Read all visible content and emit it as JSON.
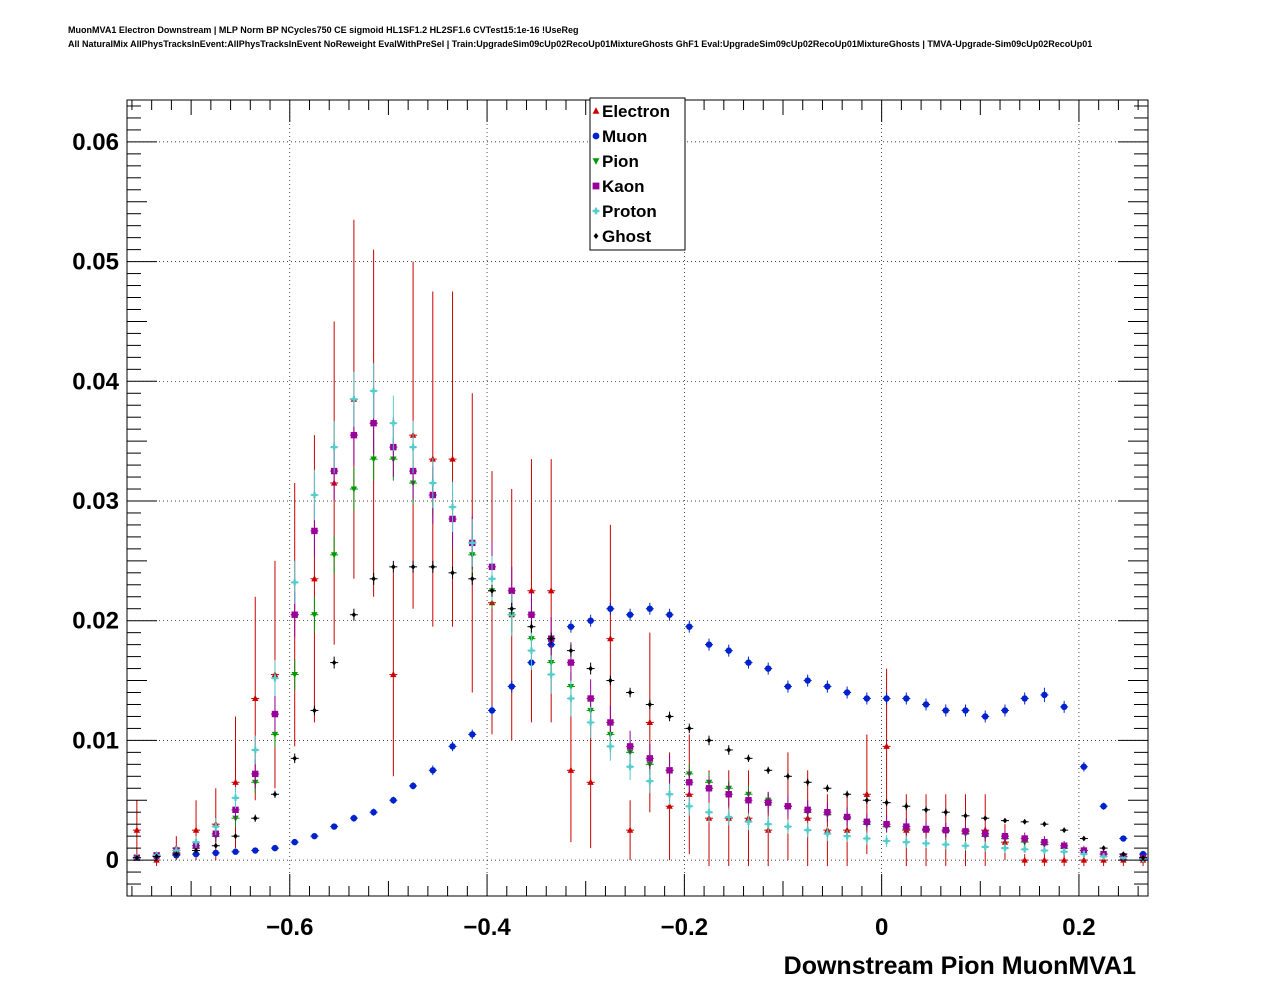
{
  "titles": {
    "line1": "MuonMVA1 Electron Downstream | MLP Norm BP NCycles750 CE sigmoid HL1SF1.2 HL2SF1.6 CVTest15:1e-16 !UseReg",
    "line2": "All NaturalMix AllPhysTracksInEvent:AllPhysTracksInEvent NoReweight EvalWithPreSel | Train:UpgradeSim09cUp02RecoUp01MixtureGhosts GhF1 Eval:UpgradeSim09cUp02RecoUp01MixtureGhosts | TMVA-Upgrade-Sim09cUp02RecoUp01"
  },
  "chart_data": {
    "type": "scatter",
    "xlabel": "Downstream Pion MuonMVA1",
    "ylabel": "",
    "xlim": [
      -0.765,
      0.27
    ],
    "ylim": [
      -0.003,
      0.0635
    ],
    "grid": true,
    "legend_position": "top-center",
    "x_ticks": [
      -0.6,
      -0.4,
      -0.2,
      0,
      0.2
    ],
    "x_tick_labels": [
      "−0.6",
      "−0.4",
      "−0.2",
      "0",
      "0.2"
    ],
    "y_ticks": [
      0,
      0.01,
      0.02,
      0.03,
      0.04,
      0.05,
      0.06
    ],
    "y_tick_labels": [
      "0",
      "0.01",
      "0.02",
      "0.03",
      "0.04",
      "0.05",
      "0.06"
    ],
    "x": [
      -0.755,
      -0.735,
      -0.715,
      -0.695,
      -0.675,
      -0.655,
      -0.635,
      -0.615,
      -0.595,
      -0.575,
      -0.555,
      -0.535,
      -0.515,
      -0.495,
      -0.475,
      -0.455,
      -0.435,
      -0.415,
      -0.395,
      -0.375,
      -0.355,
      -0.335,
      -0.315,
      -0.295,
      -0.275,
      -0.255,
      -0.235,
      -0.215,
      -0.195,
      -0.175,
      -0.155,
      -0.135,
      -0.115,
      -0.095,
      -0.075,
      -0.055,
      -0.035,
      -0.015,
      0.005,
      0.025,
      0.045,
      0.065,
      0.085,
      0.105,
      0.125,
      0.145,
      0.165,
      0.185,
      0.205,
      0.225,
      0.245,
      0.265
    ],
    "series": [
      {
        "name": "Electron",
        "color": "#cc0000",
        "marker": "triangle-up",
        "values": [
          0.0025,
          0,
          0.001,
          0.0025,
          0.003,
          0.0065,
          0.0135,
          0.0155,
          0.0205,
          0.0235,
          0.0315,
          0.0385,
          0.0365,
          0.0155,
          0.0355,
          0.0335,
          0.0335,
          0.0265,
          0.0215,
          0.0205,
          0.0225,
          0.0225,
          0.0075,
          0.0065,
          0.0185,
          0.0025,
          0.0115,
          0.0045,
          0.0055,
          0.0035,
          0.0035,
          0.0035,
          0.0025,
          0.0045,
          0.0035,
          0.0025,
          0.0025,
          0.0055,
          0.0095,
          0.0025,
          0.0025,
          0.0025,
          0.0025,
          0.0025,
          0.0015,
          0,
          0,
          0,
          0,
          0,
          0,
          0
        ],
        "errors": [
          0.0025,
          0.0005,
          0.001,
          0.0025,
          0.003,
          0.0055,
          0.0085,
          0.0095,
          0.011,
          0.012,
          0.0135,
          0.015,
          0.0145,
          0.0085,
          0.0145,
          0.014,
          0.014,
          0.0125,
          0.011,
          0.0105,
          0.011,
          0.011,
          0.006,
          0.0055,
          0.0095,
          0.0025,
          0.0075,
          0.0045,
          0.005,
          0.004,
          0.004,
          0.004,
          0.003,
          0.0045,
          0.004,
          0.003,
          0.003,
          0.005,
          0.0065,
          0.003,
          0.003,
          0.003,
          0.003,
          0.003,
          0.0015,
          0.0005,
          0.0005,
          0.0005,
          0.0005,
          0.0005,
          0.0005,
          0.0005
        ]
      },
      {
        "name": "Muon",
        "color": "#0022cc",
        "marker": "circle",
        "values": [
          0.0002,
          0.0003,
          0.0004,
          0.0005,
          0.0006,
          0.0007,
          0.0008,
          0.001,
          0.0015,
          0.002,
          0.0028,
          0.0035,
          0.004,
          0.005,
          0.0062,
          0.0075,
          0.0095,
          0.0105,
          0.0125,
          0.0145,
          0.0165,
          0.018,
          0.0195,
          0.02,
          0.021,
          0.0205,
          0.021,
          0.0205,
          0.0195,
          0.018,
          0.0175,
          0.0165,
          0.016,
          0.0145,
          0.015,
          0.0145,
          0.014,
          0.0135,
          0.0135,
          0.0135,
          0.013,
          0.0125,
          0.0125,
          0.012,
          0.0125,
          0.0135,
          0.0138,
          0.0128,
          0.0078,
          0.0045,
          0.0018,
          0.0005
        ],
        "errors": [
          0.0001,
          0.0001,
          0.0001,
          0.0001,
          0.0001,
          0.0001,
          0.0001,
          0.0001,
          0.0002,
          0.0002,
          0.0002,
          0.0003,
          0.0003,
          0.0003,
          0.0003,
          0.0004,
          0.0004,
          0.0004,
          0.0004,
          0.0005,
          0.0005,
          0.0005,
          0.0005,
          0.0005,
          0.0005,
          0.0005,
          0.0005,
          0.0005,
          0.0005,
          0.0005,
          0.0005,
          0.0005,
          0.0005,
          0.0005,
          0.0005,
          0.0005,
          0.0005,
          0.0005,
          0.0005,
          0.0005,
          0.0005,
          0.0005,
          0.0005,
          0.0005,
          0.0005,
          0.0005,
          0.0006,
          0.0005,
          0.0004,
          0.0003,
          0.0002,
          0.0001
        ]
      },
      {
        "name": "Pion",
        "color": "#009900",
        "marker": "triangle-down",
        "values": [
          0.0002,
          0.0004,
          0.0006,
          0.001,
          0.002,
          0.0035,
          0.0065,
          0.0105,
          0.0155,
          0.0205,
          0.0255,
          0.031,
          0.0335,
          0.0335,
          0.0315,
          0.0305,
          0.0285,
          0.0255,
          0.0225,
          0.0205,
          0.0185,
          0.0165,
          0.0145,
          0.0125,
          0.0105,
          0.009,
          0.008,
          0.0075,
          0.0072,
          0.0065,
          0.006,
          0.0055,
          0.005,
          0.0045,
          0.004,
          0.0038,
          0.0035,
          0.003,
          0.0028,
          0.0026,
          0.0025,
          0.0024,
          0.0022,
          0.002,
          0.0018,
          0.0015,
          0.0013,
          0.001,
          0.0008,
          0.0005,
          0.0003,
          0.0002
        ],
        "errors": [
          0.0002,
          0.0003,
          0.0003,
          0.0004,
          0.0005,
          0.0007,
          0.0009,
          0.0011,
          0.0013,
          0.0015,
          0.0016,
          0.0018,
          0.0018,
          0.0018,
          0.0018,
          0.0017,
          0.0017,
          0.0016,
          0.0015,
          0.0014,
          0.0013,
          0.0013,
          0.0012,
          0.0011,
          0.001,
          0.0009,
          0.0009,
          0.0008,
          0.0008,
          0.0008,
          0.0007,
          0.0007,
          0.0007,
          0.0006,
          0.0006,
          0.0006,
          0.0006,
          0.0005,
          0.0005,
          0.0005,
          0.0005,
          0.0005,
          0.0005,
          0.0004,
          0.0004,
          0.0004,
          0.0003,
          0.0003,
          0.0003,
          0.0002,
          0.0002,
          0.0001
        ]
      },
      {
        "name": "Kaon",
        "color": "#990099",
        "marker": "square",
        "values": [
          0.0002,
          0.0004,
          0.0008,
          0.0012,
          0.0022,
          0.0042,
          0.0072,
          0.0122,
          0.0205,
          0.0275,
          0.0325,
          0.0355,
          0.0365,
          0.0345,
          0.0325,
          0.0305,
          0.0285,
          0.0265,
          0.0245,
          0.0225,
          0.0205,
          0.0185,
          0.0165,
          0.0135,
          0.0115,
          0.0095,
          0.0085,
          0.0075,
          0.0065,
          0.006,
          0.0055,
          0.005,
          0.0048,
          0.0045,
          0.0042,
          0.004,
          0.0036,
          0.0032,
          0.003,
          0.0028,
          0.0026,
          0.0025,
          0.0024,
          0.0022,
          0.002,
          0.0018,
          0.0015,
          0.0012,
          0.0008,
          0.0005,
          0.0003,
          0.0002
        ],
        "errors": [
          0.0002,
          0.0003,
          0.0004,
          0.0005,
          0.0007,
          0.0009,
          0.0012,
          0.0015,
          0.0019,
          0.0022,
          0.0024,
          0.0025,
          0.0026,
          0.0025,
          0.0024,
          0.0024,
          0.0023,
          0.0022,
          0.0021,
          0.002,
          0.0019,
          0.0018,
          0.0017,
          0.0016,
          0.0014,
          0.0013,
          0.0012,
          0.0012,
          0.0011,
          0.001,
          0.001,
          0.0009,
          0.0009,
          0.0009,
          0.0008,
          0.0008,
          0.0008,
          0.0007,
          0.0007,
          0.0007,
          0.0006,
          0.0006,
          0.0006,
          0.0006,
          0.0005,
          0.0005,
          0.0005,
          0.0004,
          0.0004,
          0.0003,
          0.0002,
          0.0002
        ]
      },
      {
        "name": "Proton",
        "color": "#55cccc",
        "marker": "cross",
        "values": [
          0.0002,
          0.0004,
          0.0008,
          0.0015,
          0.0028,
          0.0052,
          0.0092,
          0.0152,
          0.0232,
          0.0305,
          0.0345,
          0.0385,
          0.0392,
          0.0365,
          0.0345,
          0.0315,
          0.0295,
          0.0265,
          0.0235,
          0.0205,
          0.0175,
          0.0155,
          0.0135,
          0.0115,
          0.0095,
          0.0078,
          0.0066,
          0.0055,
          0.0045,
          0.004,
          0.0036,
          0.0032,
          0.003,
          0.0028,
          0.0025,
          0.0022,
          0.002,
          0.0018,
          0.0016,
          0.0015,
          0.0014,
          0.0013,
          0.0012,
          0.0011,
          0.001,
          0.0009,
          0.0008,
          0.0007,
          0.0005,
          0.0003,
          0.0002,
          0.0001
        ],
        "errors": [
          0.0002,
          0.0003,
          0.0004,
          0.0005,
          0.0007,
          0.0009,
          0.0012,
          0.0015,
          0.0018,
          0.0021,
          0.0022,
          0.0023,
          0.0023,
          0.0023,
          0.0022,
          0.0021,
          0.0021,
          0.002,
          0.0019,
          0.0018,
          0.0016,
          0.0016,
          0.0015,
          0.0013,
          0.0012,
          0.0011,
          0.001,
          0.0009,
          0.0008,
          0.0008,
          0.0007,
          0.0007,
          0.0007,
          0.0006,
          0.0006,
          0.0006,
          0.0005,
          0.0005,
          0.0005,
          0.0005,
          0.0004,
          0.0004,
          0.0004,
          0.0004,
          0.0004,
          0.0003,
          0.0003,
          0.0003,
          0.0003,
          0.0002,
          0.0002,
          0.0001
        ]
      },
      {
        "name": "Ghost",
        "color": "#000000",
        "marker": "diamond",
        "values": [
          0.0002,
          0.0003,
          0.0005,
          0.0008,
          0.0012,
          0.002,
          0.0035,
          0.0055,
          0.0085,
          0.0125,
          0.0165,
          0.0205,
          0.0235,
          0.0245,
          0.0245,
          0.0245,
          0.024,
          0.0235,
          0.0225,
          0.021,
          0.0195,
          0.0185,
          0.0175,
          0.016,
          0.015,
          0.014,
          0.013,
          0.012,
          0.011,
          0.01,
          0.0092,
          0.0085,
          0.0075,
          0.007,
          0.0065,
          0.006,
          0.0055,
          0.005,
          0.0048,
          0.0045,
          0.0042,
          0.004,
          0.0037,
          0.0035,
          0.0033,
          0.0032,
          0.003,
          0.0025,
          0.0018,
          0.001,
          0.0005,
          0.0002
        ],
        "errors": [
          0.0001,
          0.0001,
          0.0001,
          0.0001,
          0.0002,
          0.0002,
          0.0003,
          0.0003,
          0.0004,
          0.0004,
          0.0005,
          0.0005,
          0.0005,
          0.0005,
          0.0005,
          0.0005,
          0.0005,
          0.0005,
          0.0005,
          0.0005,
          0.0005,
          0.0005,
          0.0005,
          0.0005,
          0.0004,
          0.0004,
          0.0004,
          0.0004,
          0.0004,
          0.0004,
          0.0004,
          0.0003,
          0.0003,
          0.0003,
          0.0003,
          0.0003,
          0.0003,
          0.0003,
          0.0003,
          0.0003,
          0.0003,
          0.0003,
          0.0003,
          0.0002,
          0.0002,
          0.0002,
          0.0002,
          0.0002,
          0.0002,
          0.0001,
          0.0001,
          0.0001
        ]
      }
    ]
  }
}
